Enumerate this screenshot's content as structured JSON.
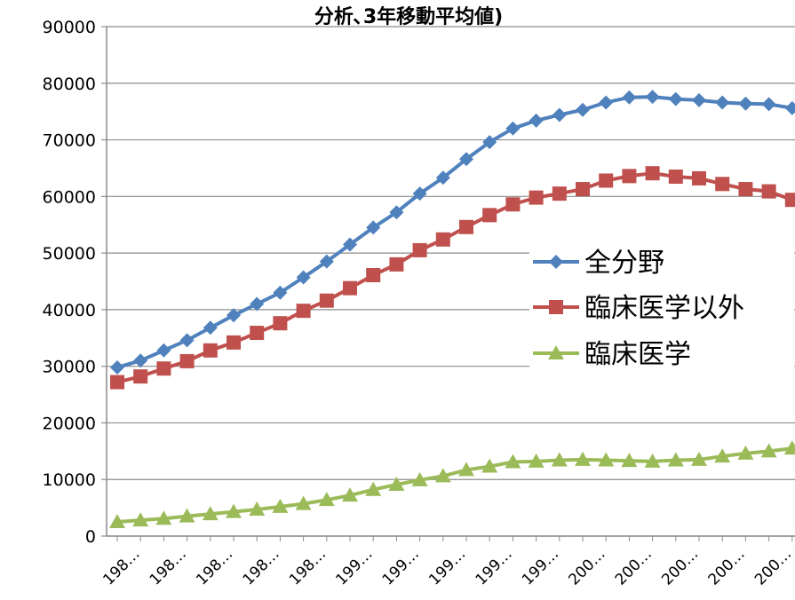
{
  "chart_data": {
    "type": "line",
    "title": "分析､3年移動平均値)",
    "xlabel": "",
    "ylabel": "",
    "ylim": [
      0,
      90000
    ],
    "y_ticks": [
      "0",
      "10000",
      "20000",
      "30000",
      "40000",
      "50000",
      "60000",
      "70000",
      "80000",
      "90000"
    ],
    "x_tick_labels": [
      "198…",
      "198…",
      "198…",
      "198…",
      "198…",
      "199…",
      "199…",
      "199…",
      "199…",
      "199…",
      "200…",
      "200…",
      "200…",
      "200…",
      "200…"
    ],
    "grid": "horizontal",
    "legend_position": "right",
    "series": [
      {
        "name": "全分野",
        "color": "#4F81BD",
        "marker": "diamond",
        "values": [
          29800,
          31000,
          32800,
          34600,
          36800,
          39000,
          41000,
          43000,
          45700,
          48500,
          51500,
          54500,
          57200,
          60500,
          63300,
          66600,
          69600,
          72000,
          73400,
          74400,
          75300,
          76600,
          77500,
          77600,
          77200,
          77000,
          76600,
          76400,
          76300,
          75600
        ]
      },
      {
        "name": "臨床医学以外",
        "color": "#C0504D",
        "marker": "square",
        "values": [
          27200,
          28200,
          29600,
          30900,
          32800,
          34200,
          35900,
          37600,
          39800,
          41600,
          43800,
          46100,
          48000,
          50500,
          52400,
          54600,
          56700,
          58600,
          59800,
          60500,
          61300,
          62800,
          63600,
          64100,
          63500,
          63200,
          62200,
          61300,
          60900,
          59400
        ]
      },
      {
        "name": "臨床医学",
        "color": "#9BBB59",
        "marker": "triangle",
        "values": [
          2500,
          2800,
          3100,
          3500,
          3900,
          4300,
          4700,
          5200,
          5700,
          6400,
          7200,
          8200,
          9100,
          9900,
          10600,
          11700,
          12300,
          13100,
          13200,
          13400,
          13500,
          13400,
          13300,
          13200,
          13400,
          13500,
          14100,
          14600,
          15000,
          15500
        ]
      }
    ]
  }
}
